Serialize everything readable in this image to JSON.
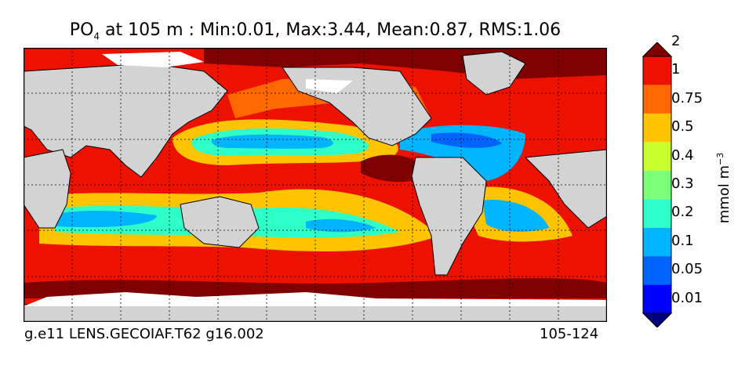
{
  "title": {
    "var_main": "PO",
    "var_sub": "4",
    "rest": " at 105 m : Min:0.01, Max:3.44, Mean:0.87, RMS:1.06"
  },
  "footer": {
    "left": "g.e11 LENS.GECOIAF.T62 g16.002",
    "right": "105-124"
  },
  "colorbar": {
    "units_main": "mmol m",
    "units_sup": "−3",
    "levels": [
      "0.01",
      "0.05",
      "0.1",
      "0.2",
      "0.3",
      "0.4",
      "0.5",
      "0.75",
      "1",
      "2"
    ],
    "colors": [
      "#00007f",
      "#0000ff",
      "#0064ff",
      "#00b4ff",
      "#2effc8",
      "#7cff79",
      "#caff2e",
      "#ffc400",
      "#ff6800",
      "#ed1100",
      "#7f0000"
    ],
    "extend": "both"
  },
  "map": {
    "land_color": "#d3d3d3",
    "ice_color": "#ffffff",
    "gridlines": "dotted"
  }
}
